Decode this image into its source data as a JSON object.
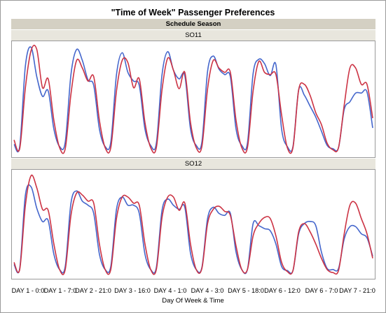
{
  "title": "\"Time of Week\" Passenger Preferences",
  "season_label": "Schedule Season",
  "chart_data": [
    {
      "type": "line",
      "panel": "SO11",
      "title": "\"Time of Week\" Passenger Preferences",
      "xlabel": "Day Of Week & Time",
      "ylabel": "",
      "x_ticks": [
        "DAY 1 - 0:0",
        "DAY 1 - 7:0",
        "DAY 2 - 21:0",
        "DAY 3 - 16:0",
        "DAY 4 - 1:0",
        "DAY 4 - 3:0",
        "DAY 5 - 18:0",
        "DAY 6 - 12:0",
        "DAY 6 - 7:0",
        "DAY 7 - 21:0"
      ],
      "grid": false,
      "legend": "none",
      "series": [
        {
          "color": "#4466cc",
          "values": [
            0.08,
            0.06,
            0.8,
            0.97,
            0.7,
            0.52,
            0.57,
            0.22,
            0.06,
            0.1,
            0.72,
            0.95,
            0.85,
            0.67,
            0.62,
            0.22,
            0.06,
            0.1,
            0.72,
            0.92,
            0.74,
            0.66,
            0.62,
            0.22,
            0.07,
            0.09,
            0.72,
            0.93,
            0.76,
            0.68,
            0.71,
            0.22,
            0.07,
            0.1,
            0.75,
            0.89,
            0.77,
            0.72,
            0.7,
            0.22,
            0.07,
            0.09,
            0.73,
            0.86,
            0.82,
            0.71,
            0.81,
            0.22,
            0.06,
            0.06,
            0.58,
            0.53,
            0.43,
            0.33,
            0.2,
            0.07,
            0.04,
            0.05,
            0.4,
            0.47,
            0.55,
            0.55,
            0.56,
            0.23
          ]
        },
        {
          "color": "#cc3344",
          "values": [
            0.12,
            0.04,
            0.6,
            0.94,
            0.95,
            0.6,
            0.68,
            0.3,
            0.05,
            0.04,
            0.54,
            0.85,
            0.78,
            0.66,
            0.7,
            0.3,
            0.05,
            0.05,
            0.57,
            0.85,
            0.83,
            0.6,
            0.68,
            0.28,
            0.05,
            0.05,
            0.58,
            0.87,
            0.76,
            0.59,
            0.74,
            0.28,
            0.05,
            0.06,
            0.59,
            0.85,
            0.78,
            0.74,
            0.74,
            0.3,
            0.05,
            0.05,
            0.57,
            0.84,
            0.74,
            0.72,
            0.72,
            0.35,
            0.05,
            0.05,
            0.58,
            0.63,
            0.53,
            0.37,
            0.26,
            0.09,
            0.03,
            0.05,
            0.44,
            0.78,
            0.78,
            0.63,
            0.63,
            0.32
          ]
        }
      ]
    },
    {
      "type": "line",
      "panel": "SO12",
      "title": "\"Time of Week\" Passenger Preferences",
      "xlabel": "Day Of Week & Time",
      "ylabel": "",
      "x_ticks": [
        "DAY 1 - 0:0",
        "DAY 1 - 7:0",
        "DAY 2 - 21:0",
        "DAY 3 - 16:0",
        "DAY 4 - 1:0",
        "DAY 4 - 3:0",
        "DAY 5 - 18:0",
        "DAY 6 - 12:0",
        "DAY 6 - 7:0",
        "DAY 7 - 21:0"
      ],
      "grid": false,
      "legend": "none",
      "series": [
        {
          "color": "#4466cc",
          "values": [
            0.1,
            0.06,
            0.78,
            0.86,
            0.65,
            0.52,
            0.53,
            0.2,
            0.05,
            0.08,
            0.7,
            0.82,
            0.72,
            0.68,
            0.6,
            0.2,
            0.05,
            0.08,
            0.64,
            0.76,
            0.68,
            0.68,
            0.6,
            0.2,
            0.05,
            0.07,
            0.63,
            0.74,
            0.68,
            0.64,
            0.66,
            0.21,
            0.05,
            0.07,
            0.55,
            0.66,
            0.6,
            0.58,
            0.6,
            0.22,
            0.05,
            0.05,
            0.5,
            0.48,
            0.45,
            0.43,
            0.3,
            0.08,
            0.04,
            0.04,
            0.4,
            0.5,
            0.52,
            0.48,
            0.22,
            0.06,
            0.05,
            0.06,
            0.35,
            0.47,
            0.47,
            0.4,
            0.36,
            0.18
          ]
        },
        {
          "color": "#cc3344",
          "values": [
            0.12,
            0.05,
            0.68,
            0.97,
            0.85,
            0.64,
            0.63,
            0.3,
            0.05,
            0.05,
            0.58,
            0.8,
            0.78,
            0.72,
            0.7,
            0.3,
            0.05,
            0.05,
            0.55,
            0.76,
            0.76,
            0.7,
            0.68,
            0.3,
            0.05,
            0.05,
            0.56,
            0.76,
            0.76,
            0.63,
            0.7,
            0.3,
            0.05,
            0.06,
            0.5,
            0.64,
            0.67,
            0.62,
            0.58,
            0.28,
            0.05,
            0.05,
            0.38,
            0.5,
            0.56,
            0.55,
            0.38,
            0.12,
            0.03,
            0.04,
            0.42,
            0.5,
            0.42,
            0.3,
            0.16,
            0.05,
            0.02,
            0.04,
            0.4,
            0.68,
            0.7,
            0.55,
            0.4,
            0.16
          ]
        }
      ]
    }
  ]
}
